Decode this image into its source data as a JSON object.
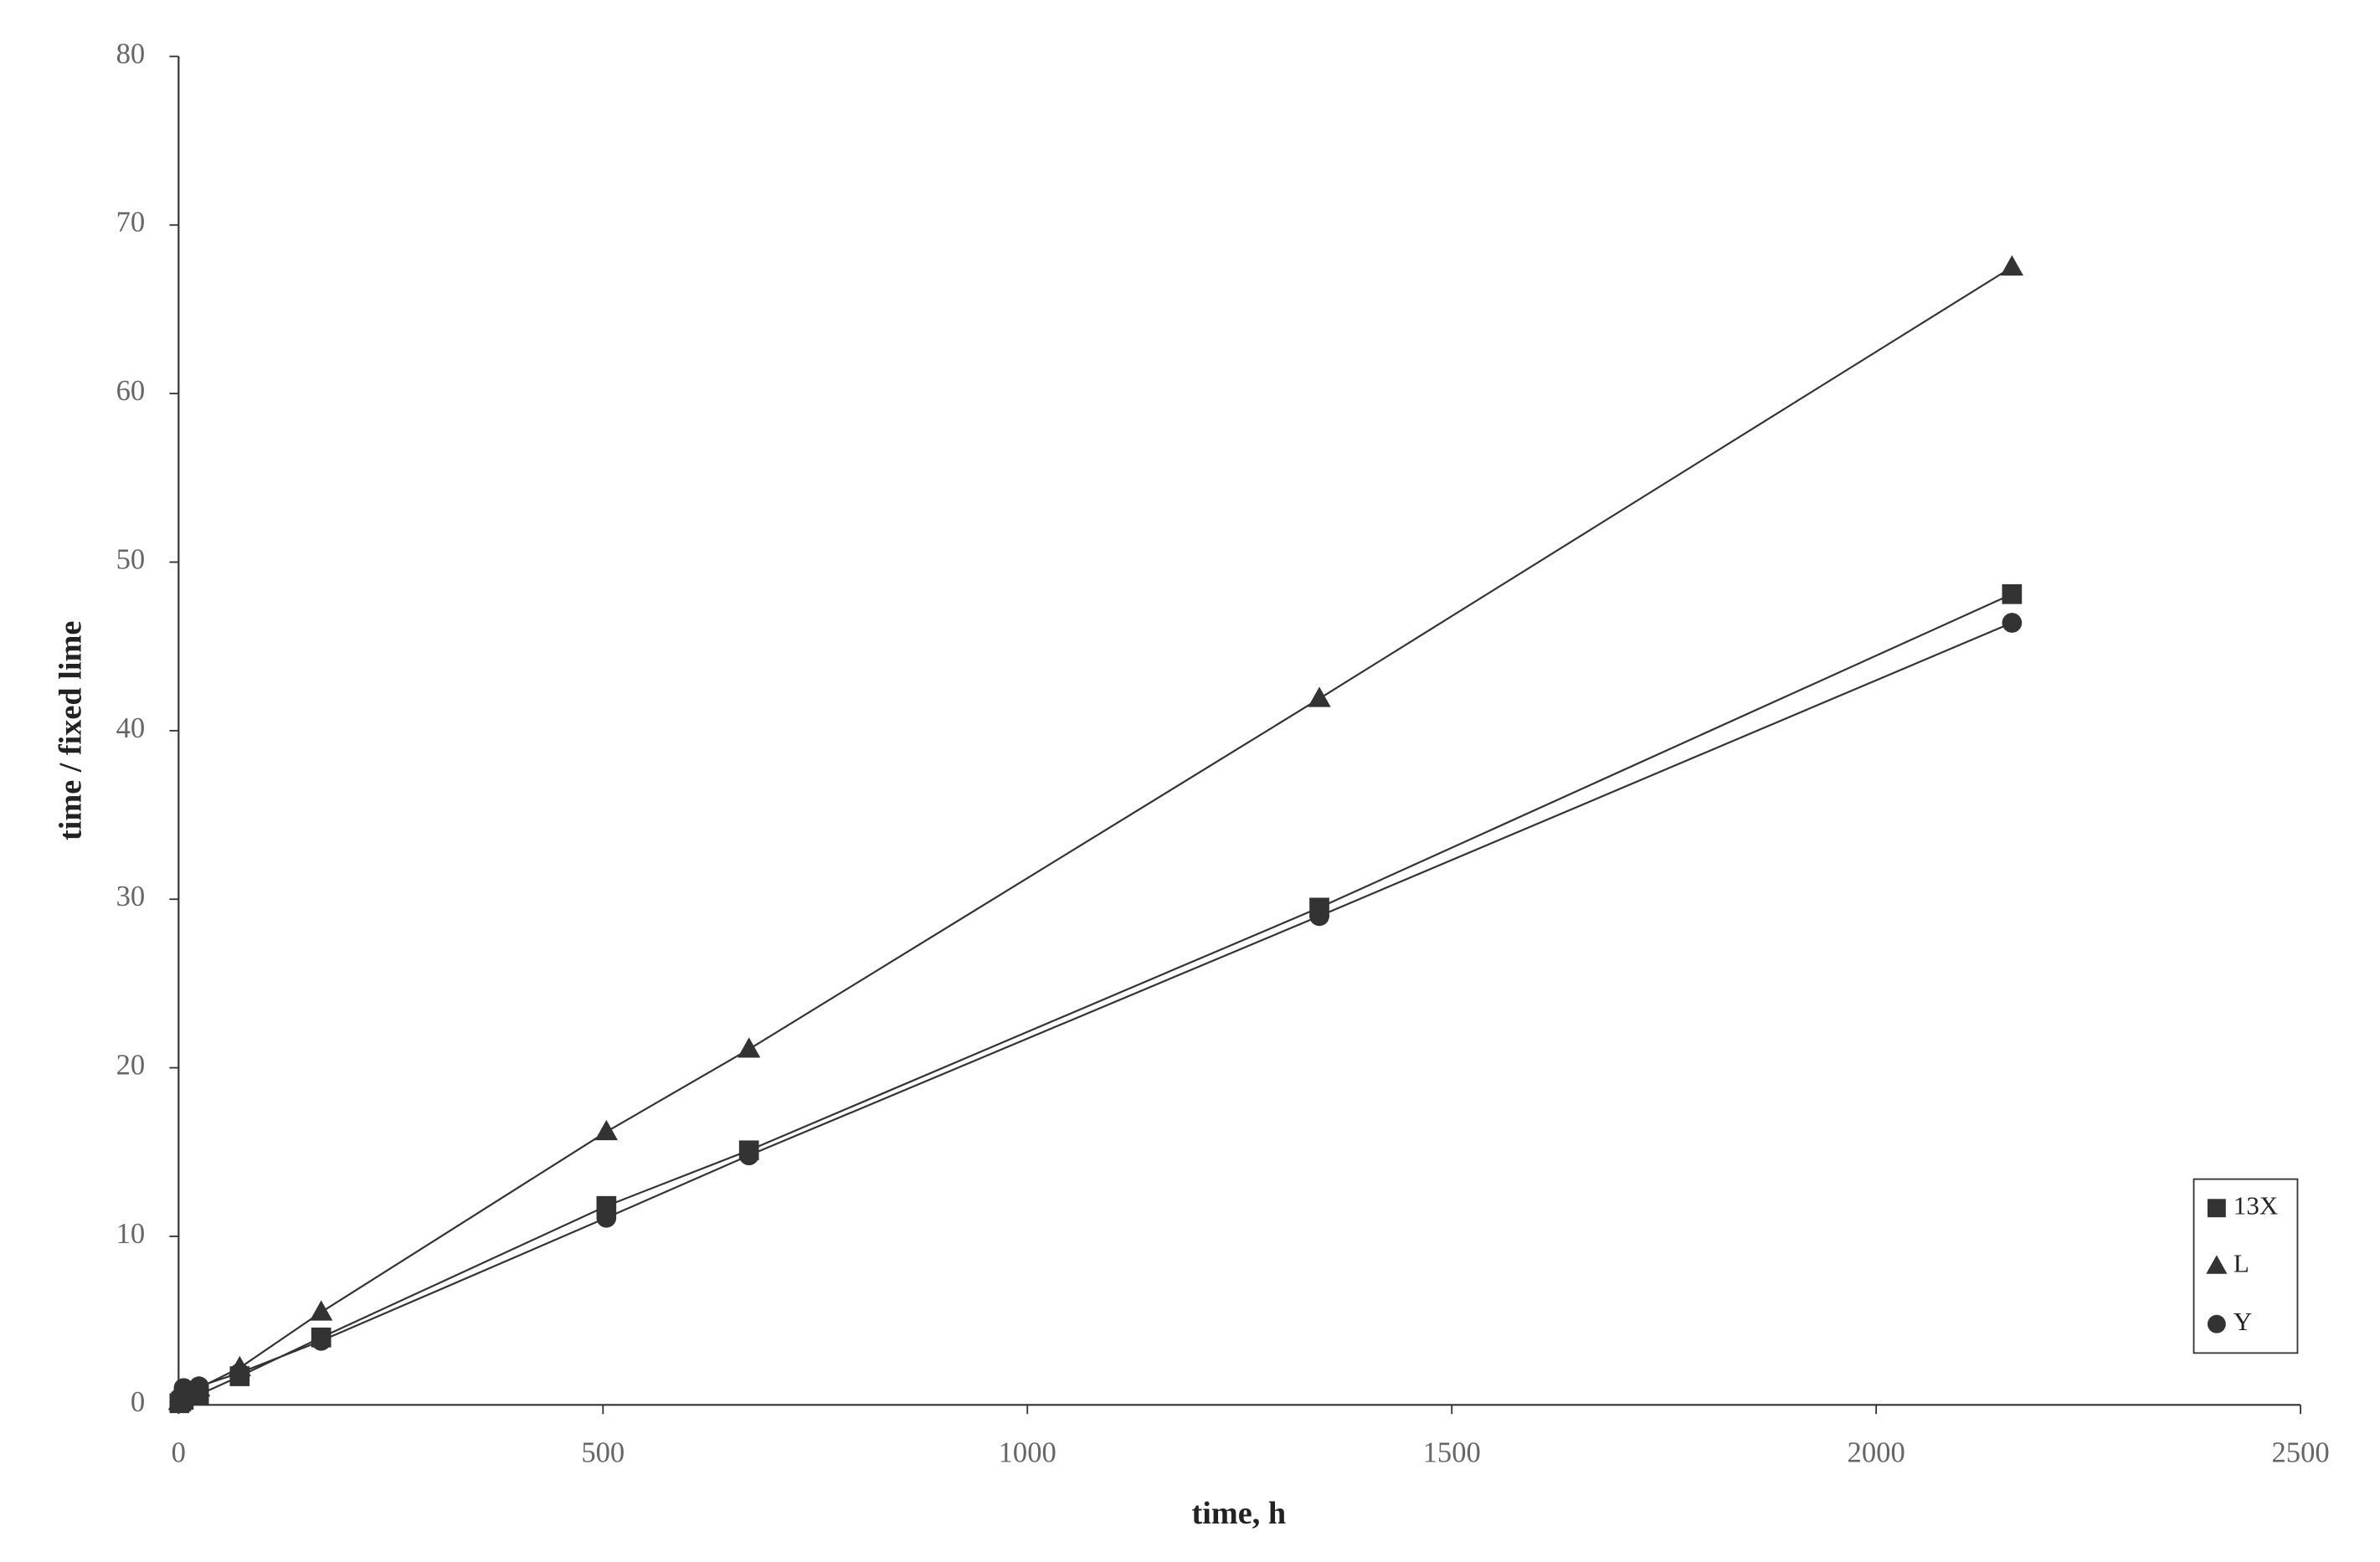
{
  "chart_data": {
    "type": "scatter",
    "x_label": "time, h",
    "y_label": "time / fixed lime",
    "x": [
      1,
      3,
      6,
      24,
      72,
      168,
      504,
      672,
      1344,
      2160
    ],
    "series": [
      {
        "name": "13X",
        "marker": "square",
        "color": "#333333",
        "values": [
          0.1,
          0.2,
          0.3,
          0.6,
          1.7,
          4.0,
          11.8,
          15.1,
          29.5,
          48.1
        ]
      },
      {
        "name": "L",
        "marker": "triangle",
        "color": "#333333",
        "values": [
          0.2,
          0.4,
          0.6,
          1.0,
          2.2,
          5.5,
          16.2,
          21.1,
          41.9,
          67.5
        ]
      },
      {
        "name": "Y",
        "marker": "circle",
        "color": "#333333",
        "values": [
          0.3,
          0.5,
          1.0,
          1.1,
          1.9,
          3.8,
          11.1,
          14.8,
          29.0,
          46.4
        ]
      }
    ],
    "xlim": [
      0,
      2500
    ],
    "xticks": [
      0,
      500,
      1000,
      1500,
      2000,
      2500
    ],
    "ylim": [
      0,
      80
    ],
    "yticks": [
      0,
      10,
      20,
      30,
      40,
      50,
      60,
      70,
      80
    ],
    "grid": false,
    "legend": "lower right"
  }
}
